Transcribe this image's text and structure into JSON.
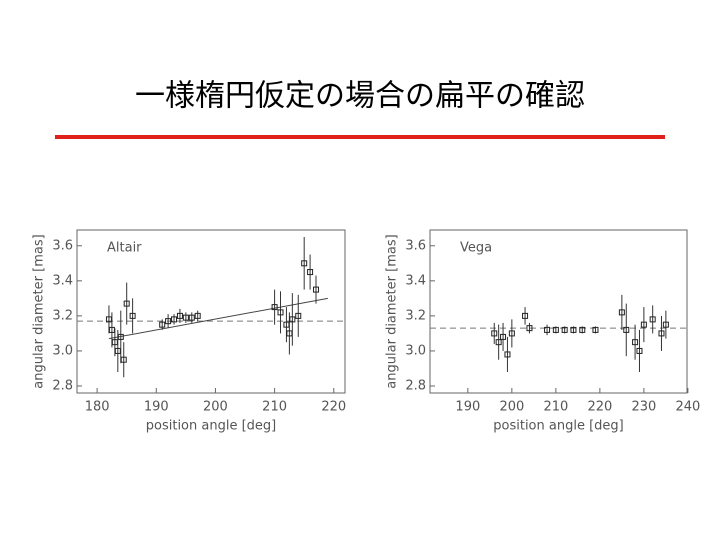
{
  "slide": {
    "title": "一様楕円仮定の場合の扁平の確認"
  },
  "chart_data": [
    {
      "type": "scatter",
      "annotation": "Altair",
      "x_label": "position angle [deg]",
      "y_label": "angular diameter [mas]",
      "xlim": [
        176.6,
        221.9
      ],
      "ylim": [
        2.76,
        3.69
      ],
      "xticks": [
        180,
        190,
        200,
        210,
        220
      ],
      "yticks": [
        2.8,
        {
          "value": 3,
          "label": "3.0"
        },
        3.2,
        3.4,
        3.6
      ],
      "x": [
        182,
        182.5,
        183,
        183.5,
        184,
        184.5,
        185,
        186,
        191,
        192,
        193,
        194,
        195,
        196,
        197,
        210,
        211,
        212,
        212.5,
        213,
        214,
        215,
        216,
        217
      ],
      "values": [
        3.18,
        3.12,
        3.05,
        3.0,
        3.08,
        2.95,
        3.27,
        3.2,
        3.15,
        3.17,
        3.18,
        3.2,
        3.19,
        3.19,
        3.2,
        3.25,
        3.22,
        3.15,
        3.1,
        3.18,
        3.2,
        3.5,
        3.45,
        3.35
      ],
      "errors": [
        0.08,
        0.1,
        0.08,
        0.12,
        0.15,
        0.1,
        0.12,
        0.1,
        0.03,
        0.04,
        0.03,
        0.04,
        0.03,
        0.03,
        0.03,
        0.1,
        0.12,
        0.1,
        0.12,
        0.15,
        0.12,
        0.15,
        0.1,
        0.08
      ],
      "reference_y": 3.17,
      "fit": {
        "x": [
          182,
          219
        ],
        "values": [
          3.07,
          3.3
        ]
      }
    },
    {
      "type": "scatter",
      "annotation": "Vega",
      "x_label": "position angle [deg]",
      "y_label": "angular diameter [mas]",
      "xlim": [
        181.4,
        239.8
      ],
      "ylim": [
        2.76,
        3.69
      ],
      "xticks": [
        190,
        200,
        210,
        220,
        230,
        240
      ],
      "yticks": [
        2.8,
        {
          "value": 3,
          "label": "3.0"
        },
        3.2,
        3.4,
        3.6
      ],
      "x": [
        196,
        197,
        198,
        199,
        200,
        203,
        204,
        208,
        210,
        212,
        214,
        216,
        219,
        225,
        226,
        228,
        229,
        230,
        232,
        234,
        235
      ],
      "values": [
        3.1,
        3.05,
        3.08,
        2.98,
        3.1,
        3.2,
        3.13,
        3.12,
        3.12,
        3.12,
        3.12,
        3.12,
        3.12,
        3.22,
        3.12,
        3.05,
        3.0,
        3.15,
        3.18,
        3.1,
        3.15
      ],
      "errors": [
        0.06,
        0.1,
        0.08,
        0.1,
        0.08,
        0.05,
        0.03,
        0.03,
        0.02,
        0.02,
        0.02,
        0.02,
        0.02,
        0.1,
        0.15,
        0.1,
        0.12,
        0.1,
        0.08,
        0.1,
        0.08
      ],
      "reference_y": 3.13
    }
  ]
}
